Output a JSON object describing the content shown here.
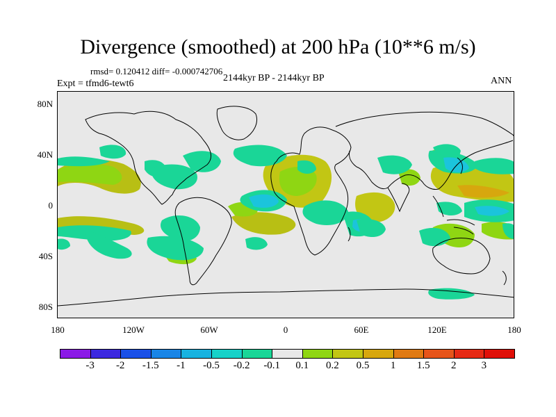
{
  "title": "Divergence (smoothed) at 200 hPa (10**6 m/s)",
  "stats_line": "rmsd= 0.120412 diff= -0.000742706",
  "experiment": "Expt = tfmd6-tewt6",
  "period": "2144kyr BP - 2144kyr BP",
  "season": "ANN",
  "lat_ticks": [
    "80N",
    "40N",
    "0",
    "40S",
    "80S"
  ],
  "lon_ticks": [
    "180",
    "120W",
    "60W",
    "0",
    "60E",
    "120E",
    "180"
  ],
  "colorbar": {
    "labels": [
      "-3",
      "-2",
      "-1.5",
      "-1",
      "-0.5",
      "-0.2",
      "-0.1",
      "0.1",
      "0.2",
      "0.5",
      "1",
      "1.5",
      "2",
      "3"
    ],
    "colors": [
      "#8b1ae6",
      "#3c28e0",
      "#1a50e8",
      "#1985e6",
      "#18b3e0",
      "#17d2c9",
      "#1ad697",
      "#e8e8e8",
      "#8fd613",
      "#c2c614",
      "#d7a70e",
      "#e07a12",
      "#e6541a",
      "#e62914",
      "#e00f08"
    ]
  },
  "colors": {
    "positive_weak": "#b8bf14",
    "positive_mid": "#7fd11c",
    "negative_weak": "#1ad697",
    "negative_mid": "#1bc4dc",
    "land_bg": "#e8e8e8"
  }
}
